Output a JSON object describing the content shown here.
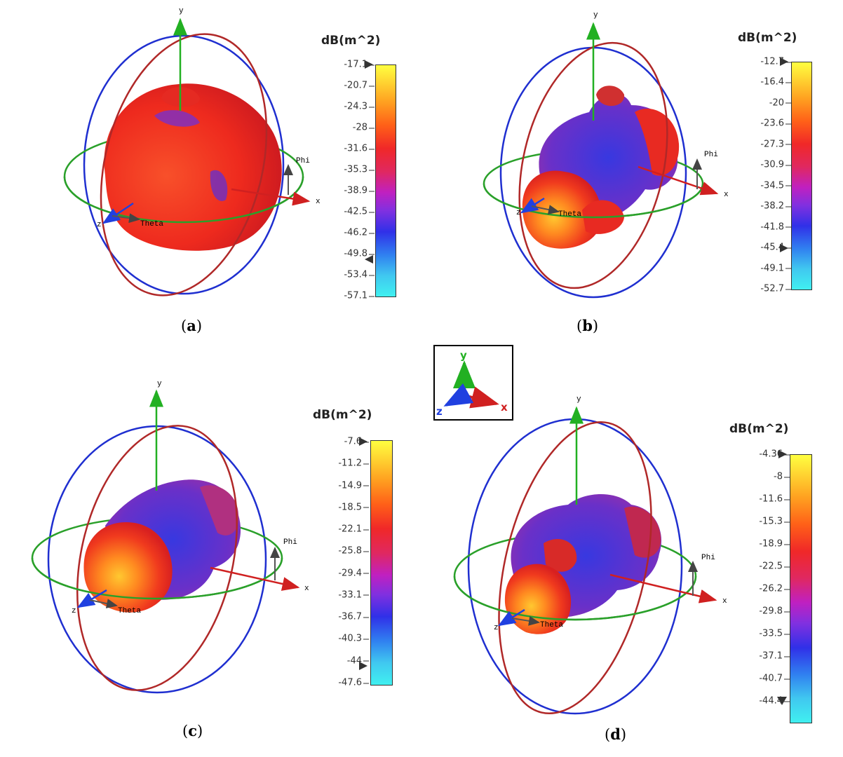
{
  "panels": [
    {
      "id": "a",
      "caption": "a",
      "colorbar": {
        "title": "dB(m^2)",
        "ticks": [
          "-17.1",
          "-20.7",
          "-24.3",
          "-28",
          "-31.6",
          "-35.3",
          "-38.9",
          "-42.5",
          "-46.2",
          "-49.8",
          "-53.4",
          "-57.1"
        ]
      },
      "axes": {
        "x": "x",
        "y": "y",
        "z": "z",
        "phi": "Phi",
        "theta": "Theta"
      }
    },
    {
      "id": "b",
      "caption": "b",
      "colorbar": {
        "title": "dB(m^2)",
        "ticks": [
          "-12.7",
          "-16.4",
          "-20",
          "-23.6",
          "-27.3",
          "-30.9",
          "-34.5",
          "-38.2",
          "-41.8",
          "-45.4",
          "-49.1",
          "-52.7"
        ]
      },
      "axes": {
        "x": "x",
        "y": "y",
        "z": "z",
        "phi": "Phi",
        "theta": "Theta"
      }
    },
    {
      "id": "c",
      "caption": "c",
      "colorbar": {
        "title": "dB(m^2)",
        "ticks": [
          "-7.6",
          "-11.2",
          "-14.9",
          "-18.5",
          "-22.1",
          "-25.8",
          "-29.4",
          "-33.1",
          "-36.7",
          "-40.3",
          "-44",
          "-47.6"
        ]
      },
      "axes": {
        "x": "x",
        "y": "y",
        "z": "z",
        "phi": "Phi",
        "theta": "Theta"
      }
    },
    {
      "id": "d",
      "caption": "d",
      "colorbar": {
        "title": "dB(m^2)",
        "ticks": [
          "-4.36",
          "-8",
          "-11.6",
          "-15.3",
          "-18.9",
          "-22.5",
          "-26.2",
          "-29.8",
          "-33.5",
          "-37.1",
          "-40.7",
          "-44.4"
        ]
      },
      "axes": {
        "x": "x",
        "y": "y",
        "z": "z",
        "phi": "Phi",
        "theta": "Theta"
      }
    }
  ],
  "orientation_legend": {
    "x": "x",
    "y": "y",
    "z": "z"
  },
  "colors": {
    "ring_blue": "#1f2fd0",
    "ring_red": "#b02828",
    "ring_green": "#2aa02a",
    "lobe_red": "#ef2a1c",
    "lobe_blue": "#4a30d8",
    "axis_x": "#d02020",
    "axis_y": "#22b022",
    "axis_z": "#2040e0"
  }
}
